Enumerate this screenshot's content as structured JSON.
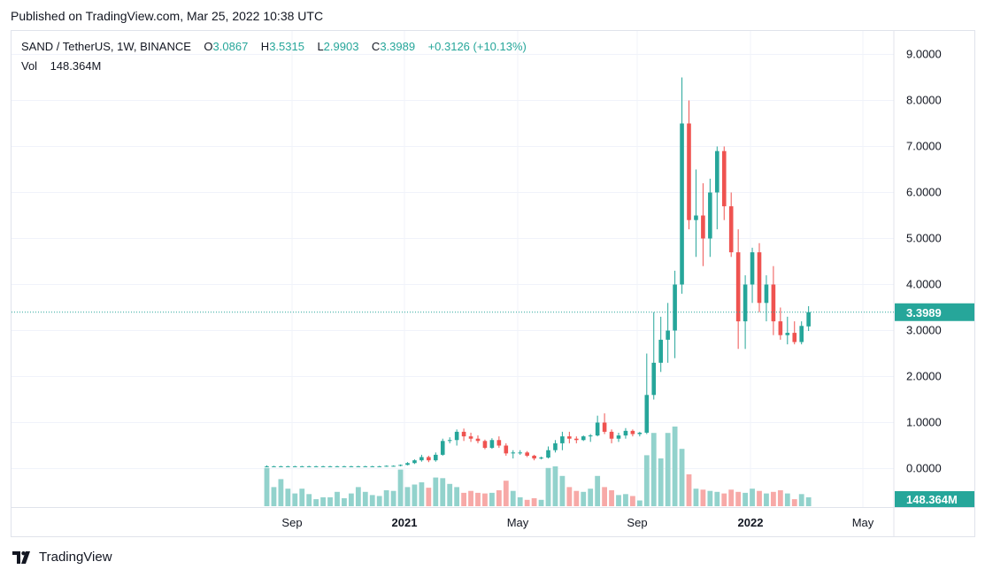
{
  "header": {
    "published": "Published on TradingView.com, Mar 25, 2022 10:38 UTC"
  },
  "legend": {
    "symbol": "SAND / TetherUS, 1W, BINANCE",
    "o_label": "O",
    "o_value": "3.0867",
    "h_label": "H",
    "h_value": "3.5315",
    "l_label": "L",
    "l_value": "2.9903",
    "c_label": "C",
    "c_value": "3.3989",
    "change": "+0.3126 (+10.13%)",
    "vol_label": "Vol",
    "vol_value": "148.364M"
  },
  "footer": {
    "brand": "TradingView"
  },
  "colors": {
    "up": "#26a69a",
    "down": "#ef5350",
    "vol_up": "#92d2cc",
    "vol_down": "#f7a9a7",
    "grid": "#f0f3fa",
    "text": "#131722"
  },
  "chart_data": {
    "type": "candlestick",
    "symbol": "SAND / TetherUS",
    "interval": "1W",
    "exchange": "BINANCE",
    "ylim": [
      -0.85,
      9.3
    ],
    "y_ticks": [
      "9.0000",
      "8.0000",
      "7.0000",
      "6.0000",
      "5.0000",
      "4.0000",
      "3.0000",
      "2.0000",
      "1.0000",
      "0.0000"
    ],
    "x_ticks": [
      "Sep",
      "2021",
      "May",
      "Sep",
      "2022",
      "May"
    ],
    "last_price": "3.3989",
    "last_volume": "148.364M",
    "candles": [
      [
        0.05,
        0.07,
        0.03,
        0.05,
        120
      ],
      [
        0.05,
        0.06,
        0.04,
        0.05,
        60
      ],
      [
        0.05,
        0.06,
        0.04,
        0.05,
        85
      ],
      [
        0.05,
        0.06,
        0.04,
        0.05,
        55
      ],
      [
        0.05,
        0.06,
        0.04,
        0.05,
        40
      ],
      [
        0.05,
        0.06,
        0.04,
        0.05,
        55
      ],
      [
        0.05,
        0.06,
        0.04,
        0.05,
        38
      ],
      [
        0.05,
        0.06,
        0.04,
        0.05,
        22
      ],
      [
        0.05,
        0.06,
        0.04,
        0.05,
        28
      ],
      [
        0.05,
        0.06,
        0.04,
        0.05,
        28
      ],
      [
        0.05,
        0.06,
        0.04,
        0.05,
        45
      ],
      [
        0.05,
        0.06,
        0.04,
        0.05,
        25
      ],
      [
        0.05,
        0.06,
        0.04,
        0.05,
        40
      ],
      [
        0.05,
        0.06,
        0.04,
        0.05,
        60
      ],
      [
        0.05,
        0.06,
        0.04,
        0.05,
        45
      ],
      [
        0.05,
        0.06,
        0.04,
        0.05,
        35
      ],
      [
        0.05,
        0.06,
        0.04,
        0.05,
        32
      ],
      [
        0.05,
        0.07,
        0.04,
        0.06,
        50
      ],
      [
        0.06,
        0.07,
        0.05,
        0.06,
        48
      ],
      [
        0.06,
        0.09,
        0.05,
        0.08,
        115
      ],
      [
        0.08,
        0.14,
        0.07,
        0.12,
        60
      ],
      [
        0.12,
        0.2,
        0.1,
        0.18,
        68
      ],
      [
        0.18,
        0.3,
        0.15,
        0.25,
        75
      ],
      [
        0.25,
        0.28,
        0.14,
        0.18,
        58
      ],
      [
        0.18,
        0.35,
        0.15,
        0.3,
        90
      ],
      [
        0.3,
        0.65,
        0.28,
        0.6,
        88
      ],
      [
        0.6,
        0.68,
        0.55,
        0.62,
        70
      ],
      [
        0.62,
        0.85,
        0.5,
        0.8,
        60
      ],
      [
        0.8,
        0.87,
        0.6,
        0.7,
        42
      ],
      [
        0.7,
        0.78,
        0.58,
        0.65,
        48
      ],
      [
        0.65,
        0.72,
        0.55,
        0.6,
        42
      ],
      [
        0.6,
        0.63,
        0.42,
        0.45,
        40
      ],
      [
        0.45,
        0.66,
        0.43,
        0.62,
        42
      ],
      [
        0.62,
        0.7,
        0.45,
        0.5,
        50
      ],
      [
        0.5,
        0.55,
        0.28,
        0.33,
        80
      ],
      [
        0.33,
        0.4,
        0.22,
        0.35,
        48
      ],
      [
        0.35,
        0.4,
        0.3,
        0.35,
        28
      ],
      [
        0.35,
        0.38,
        0.25,
        0.28,
        20
      ],
      [
        0.28,
        0.3,
        0.18,
        0.22,
        25
      ],
      [
        0.22,
        0.26,
        0.2,
        0.24,
        20
      ],
      [
        0.24,
        0.48,
        0.22,
        0.4,
        120
      ],
      [
        0.4,
        0.62,
        0.35,
        0.55,
        125
      ],
      [
        0.55,
        0.8,
        0.4,
        0.7,
        95
      ],
      [
        0.7,
        0.8,
        0.55,
        0.65,
        60
      ],
      [
        0.65,
        0.7,
        0.55,
        0.62,
        48
      ],
      [
        0.62,
        0.72,
        0.6,
        0.7,
        45
      ],
      [
        0.7,
        0.75,
        0.58,
        0.72,
        55
      ],
      [
        0.72,
        1.15,
        0.7,
        1.0,
        95
      ],
      [
        1.0,
        1.2,
        0.75,
        0.8,
        60
      ],
      [
        0.8,
        0.85,
        0.55,
        0.65,
        50
      ],
      [
        0.65,
        0.78,
        0.58,
        0.72,
        35
      ],
      [
        0.72,
        0.88,
        0.65,
        0.82,
        38
      ],
      [
        0.82,
        0.85,
        0.7,
        0.75,
        32
      ],
      [
        0.75,
        0.8,
        0.7,
        0.78,
        18
      ],
      [
        0.78,
        2.5,
        0.75,
        1.6,
        160
      ],
      [
        1.6,
        3.4,
        1.5,
        2.3,
        230
      ],
      [
        2.3,
        3.3,
        2.1,
        2.8,
        150
      ],
      [
        2.8,
        3.6,
        2.3,
        3.0,
        230
      ],
      [
        3.0,
        4.3,
        2.4,
        4.0,
        250
      ],
      [
        4.0,
        8.5,
        3.8,
        7.5,
        180
      ],
      [
        7.5,
        8.0,
        5.2,
        5.4,
        100
      ],
      [
        5.4,
        6.5,
        4.6,
        5.5,
        55
      ],
      [
        5.5,
        6.2,
        4.4,
        5.0,
        52
      ],
      [
        5.0,
        6.3,
        4.6,
        6.0,
        48
      ],
      [
        6.0,
        7.0,
        5.2,
        6.9,
        45
      ],
      [
        6.9,
        7.0,
        5.4,
        5.7,
        40
      ],
      [
        5.7,
        6.0,
        4.6,
        4.7,
        52
      ],
      [
        4.7,
        5.2,
        2.6,
        3.2,
        45
      ],
      [
        3.2,
        4.2,
        2.6,
        4.0,
        42
      ],
      [
        4.0,
        4.8,
        3.6,
        4.7,
        55
      ],
      [
        4.7,
        4.9,
        3.4,
        3.6,
        48
      ],
      [
        3.6,
        4.2,
        3.2,
        4.0,
        40
      ],
      [
        4.0,
        4.4,
        2.9,
        3.2,
        45
      ],
      [
        3.2,
        3.5,
        2.8,
        2.9,
        50
      ],
      [
        2.9,
        3.3,
        2.7,
        2.95,
        40
      ],
      [
        2.95,
        3.2,
        2.7,
        2.75,
        22
      ],
      [
        2.75,
        3.2,
        2.7,
        3.1,
        38
      ],
      [
        3.09,
        3.53,
        2.99,
        3.4,
        28
      ]
    ]
  }
}
